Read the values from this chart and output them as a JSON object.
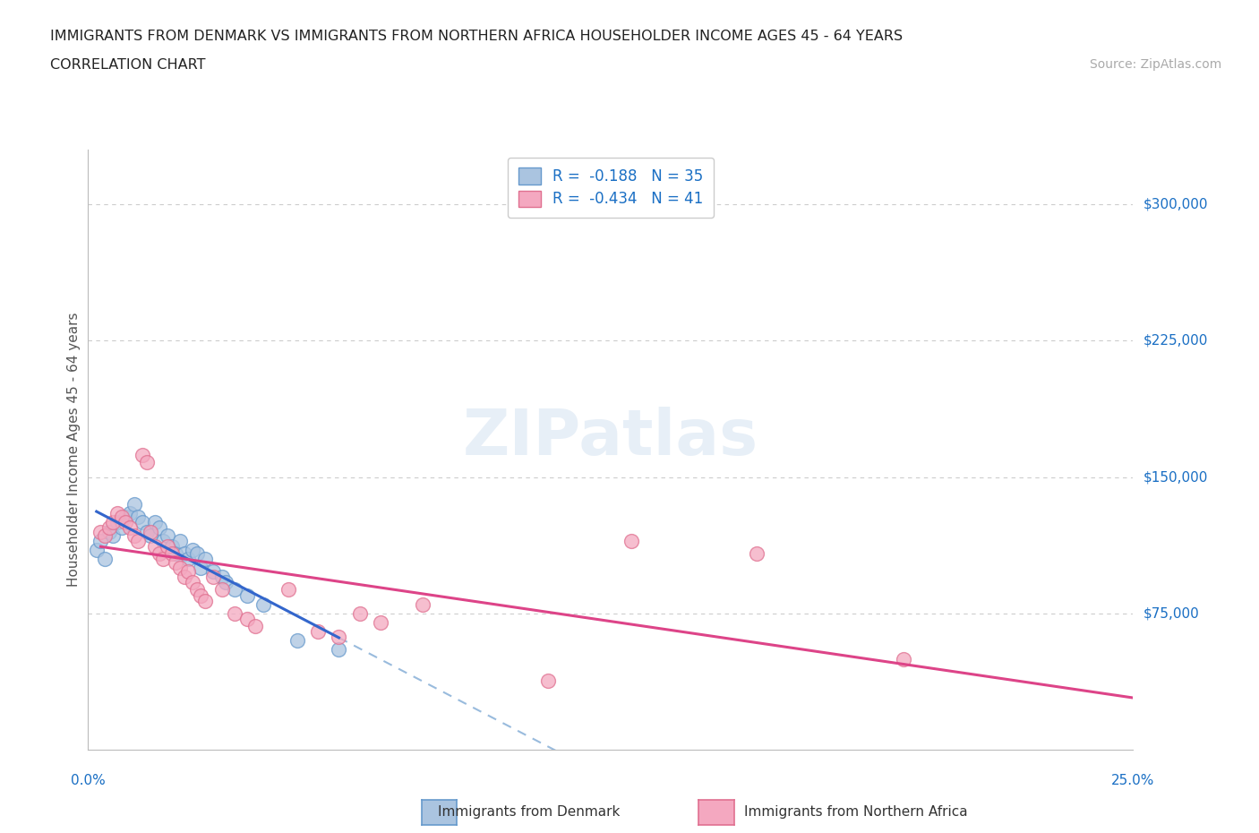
{
  "title_line1": "IMMIGRANTS FROM DENMARK VS IMMIGRANTS FROM NORTHERN AFRICA HOUSEHOLDER INCOME AGES 45 - 64 YEARS",
  "title_line2": "CORRELATION CHART",
  "source_text": "Source: ZipAtlas.com",
  "ylabel": "Householder Income Ages 45 - 64 years",
  "xlim": [
    0.0,
    0.25
  ],
  "ylim": [
    0,
    330000
  ],
  "ytick_labels": [
    "$75,000",
    "$150,000",
    "$225,000",
    "$300,000"
  ],
  "ytick_values": [
    75000,
    150000,
    225000,
    300000
  ],
  "legend_r1": "R =  -0.188",
  "legend_n1": "N = 35",
  "legend_r2": "R =  -0.434",
  "legend_n2": "N = 41",
  "denmark_color": "#aac4e0",
  "denmark_edge": "#6699cc",
  "na_color": "#f4a8c0",
  "na_edge": "#e07090",
  "line_denmark_color": "#3366cc",
  "line_na_color": "#dd4488",
  "line_dash_color": "#99bbdd",
  "watermark": "ZIPatlas",
  "denmark_x": [
    0.002,
    0.003,
    0.004,
    0.005,
    0.006,
    0.007,
    0.008,
    0.009,
    0.01,
    0.011,
    0.012,
    0.013,
    0.014,
    0.015,
    0.016,
    0.017,
    0.018,
    0.019,
    0.02,
    0.021,
    0.022,
    0.023,
    0.024,
    0.025,
    0.026,
    0.027,
    0.028,
    0.03,
    0.032,
    0.033,
    0.035,
    0.038,
    0.042,
    0.05,
    0.06
  ],
  "denmark_y": [
    110000,
    115000,
    105000,
    120000,
    118000,
    125000,
    122000,
    128000,
    130000,
    135000,
    128000,
    125000,
    120000,
    118000,
    125000,
    122000,
    115000,
    118000,
    112000,
    108000,
    115000,
    108000,
    105000,
    110000,
    108000,
    100000,
    105000,
    98000,
    95000,
    92000,
    88000,
    85000,
    80000,
    60000,
    55000
  ],
  "na_x": [
    0.003,
    0.004,
    0.005,
    0.006,
    0.007,
    0.008,
    0.009,
    0.01,
    0.011,
    0.012,
    0.013,
    0.014,
    0.015,
    0.016,
    0.017,
    0.018,
    0.019,
    0.02,
    0.021,
    0.022,
    0.023,
    0.024,
    0.025,
    0.026,
    0.027,
    0.028,
    0.03,
    0.032,
    0.035,
    0.038,
    0.04,
    0.048,
    0.055,
    0.06,
    0.065,
    0.07,
    0.13,
    0.16,
    0.195,
    0.11,
    0.08
  ],
  "na_y": [
    120000,
    118000,
    122000,
    125000,
    130000,
    128000,
    125000,
    122000,
    118000,
    115000,
    162000,
    158000,
    120000,
    112000,
    108000,
    105000,
    112000,
    108000,
    103000,
    100000,
    95000,
    98000,
    92000,
    88000,
    85000,
    82000,
    95000,
    88000,
    75000,
    72000,
    68000,
    88000,
    65000,
    62000,
    75000,
    70000,
    115000,
    108000,
    50000,
    38000,
    80000
  ],
  "background_color": "#ffffff"
}
